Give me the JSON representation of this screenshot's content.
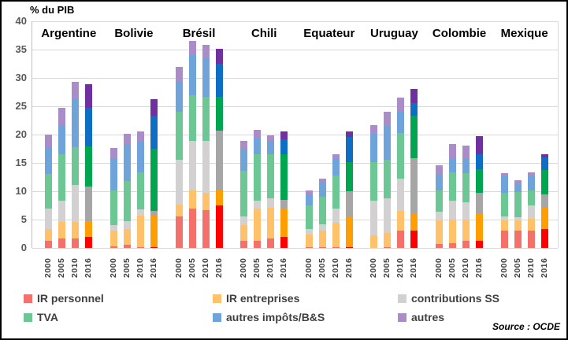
{
  "title": "% du PIB",
  "source": "Source : OCDE",
  "legend": [
    {
      "label": "IR personnel",
      "color": "#F4706B"
    },
    {
      "label": "IR entreprises",
      "color": "#FFC169"
    },
    {
      "label": "contributions SS",
      "color": "#D2D0D0"
    },
    {
      "label": "TVA",
      "color": "#6CC795"
    },
    {
      "label": "autres impôts/B&S",
      "color": "#6FA4DB"
    },
    {
      "label": "autres",
      "color": "#A98CC8"
    }
  ],
  "chart_data": {
    "type": "bar",
    "stacked": true,
    "title": "% du PIB",
    "ylabel": "% du PIB",
    "ylim": [
      0,
      40
    ],
    "yticks": [
      0,
      5,
      10,
      15,
      20,
      25,
      30,
      35,
      40
    ],
    "grid": true,
    "years": [
      "2000",
      "2005",
      "2010",
      "2016"
    ],
    "series_keys": [
      "IR personnel",
      "IR entreprises",
      "contributions SS",
      "TVA",
      "autres impôts/B&S",
      "autres"
    ],
    "palette_normal": {
      "IR personnel": "#F4706B",
      "IR entreprises": "#FFC169",
      "contributions SS": "#D2D0D0",
      "TVA": "#6CC795",
      "autres impôts/B&S": "#6FA4DB",
      "autres": "#A98CC8"
    },
    "palette_2016": {
      "IR personnel": "#FF0000",
      "IR entreprises": "#FF9E00",
      "contributions SS": "#A6A6A6",
      "TVA": "#00A550",
      "autres impôts/B&S": "#0E6EC4",
      "autres": "#7030A0"
    },
    "groups": [
      {
        "country": "Argentine",
        "bars": [
          {
            "year": "2000",
            "values": [
              1.3,
              2.1,
              3.6,
              6.1,
              4.7,
              2.2
            ]
          },
          {
            "year": "2005",
            "values": [
              1.6,
              3.0,
              3.7,
              8.3,
              5.1,
              3.0
            ]
          },
          {
            "year": "2010",
            "values": [
              1.7,
              2.9,
              6.5,
              6.7,
              8.5,
              3.0
            ]
          },
          {
            "year": "2016",
            "values": [
              1.9,
              2.8,
              6.2,
              7.0,
              6.8,
              4.2
            ]
          }
        ]
      },
      {
        "country": "Bolivie",
        "bars": [
          {
            "year": "2000",
            "values": [
              0.3,
              2.7,
              1.1,
              6.0,
              5.8,
              1.7
            ]
          },
          {
            "year": "2005",
            "values": [
              0.5,
              2.9,
              1.3,
              7.1,
              6.5,
              1.8
            ]
          },
          {
            "year": "2010",
            "values": [
              0.2,
              5.5,
              1.1,
              6.6,
              5.4,
              1.7
            ]
          },
          {
            "year": "2016",
            "values": [
              0.2,
              5.5,
              0.8,
              11.0,
              5.8,
              3.0
            ]
          }
        ]
      },
      {
        "country": "Brésil",
        "bars": [
          {
            "year": "2000",
            "values": [
              5.5,
              2.1,
              8.0,
              8.4,
              5.4,
              2.5
            ]
          },
          {
            "year": "2005",
            "values": [
              6.9,
              3.2,
              8.8,
              8.0,
              7.1,
              2.5
            ]
          },
          {
            "year": "2010",
            "values": [
              6.6,
              3.1,
              9.2,
              7.8,
              6.8,
              2.4
            ]
          },
          {
            "year": "2016",
            "values": [
              7.5,
              2.8,
              10.4,
              6.0,
              5.8,
              2.6
            ]
          }
        ]
      },
      {
        "country": "Chili",
        "bars": [
          {
            "year": "2000",
            "values": [
              1.2,
              2.9,
              1.5,
              8.0,
              3.9,
              1.4
            ]
          },
          {
            "year": "2005",
            "values": [
              1.3,
              5.7,
              1.4,
              8.2,
              2.7,
              1.5
            ]
          },
          {
            "year": "2010",
            "values": [
              1.6,
              5.5,
              1.6,
              7.9,
              2.3,
              0.9
            ]
          },
          {
            "year": "2016",
            "values": [
              1.9,
              4.9,
              1.7,
              8.1,
              2.6,
              1.4
            ]
          }
        ]
      },
      {
        "country": "Equateur",
        "bars": [
          {
            "year": "2000",
            "values": [
              0.1,
              2.3,
              1.0,
              4.1,
              2.0,
              0.6
            ]
          },
          {
            "year": "2005",
            "values": [
              0.1,
              2.9,
              1.2,
              4.9,
              2.6,
              0.5
            ]
          },
          {
            "year": "2010",
            "values": [
              0.1,
              4.3,
              2.6,
              5.8,
              3.1,
              0.7
            ]
          },
          {
            "year": "2016",
            "values": [
              0.2,
              5.3,
              4.5,
              5.1,
              4.5,
              1.0
            ]
          }
        ]
      },
      {
        "country": "Uruguay",
        "bars": [
          {
            "year": "2000",
            "values": [
              0.0,
              2.2,
              6.2,
              6.8,
              5.0,
              1.5
            ]
          },
          {
            "year": "2005",
            "values": [
              0.1,
              2.5,
              6.1,
              6.8,
              6.0,
              2.5
            ]
          },
          {
            "year": "2010",
            "values": [
              3.0,
              3.5,
              5.7,
              8.1,
              3.7,
              2.5
            ]
          },
          {
            "year": "2016",
            "values": [
              3.1,
              3.0,
              9.8,
              7.5,
              2.2,
              2.5
            ]
          }
        ]
      },
      {
        "country": "Colombie",
        "bars": [
          {
            "year": "2000",
            "values": [
              0.7,
              4.1,
              1.6,
              3.7,
              2.8,
              1.7
            ]
          },
          {
            "year": "2005",
            "values": [
              0.9,
              4.1,
              3.4,
              5.0,
              2.5,
              2.4
            ]
          },
          {
            "year": "2010",
            "values": [
              1.2,
              3.8,
              3.1,
              5.1,
              2.7,
              2.2
            ]
          },
          {
            "year": "2016",
            "values": [
              1.2,
              4.9,
              3.6,
              4.2,
              2.6,
              3.3
            ]
          }
        ]
      },
      {
        "country": "Mexique",
        "bars": [
          {
            "year": "2000",
            "values": [
              3.0,
              1.8,
              0.7,
              4.2,
              3.0,
              0.5
            ]
          },
          {
            "year": "2005",
            "values": [
              3.0,
              1.9,
              0.5,
              4.4,
              1.5,
              0.6
            ]
          },
          {
            "year": "2010",
            "values": [
              3.0,
              2.2,
              2.3,
              2.6,
              2.6,
              0.7
            ]
          },
          {
            "year": "2016",
            "values": [
              3.4,
              3.7,
              2.3,
              4.3,
              2.3,
              0.5
            ]
          }
        ]
      }
    ]
  }
}
